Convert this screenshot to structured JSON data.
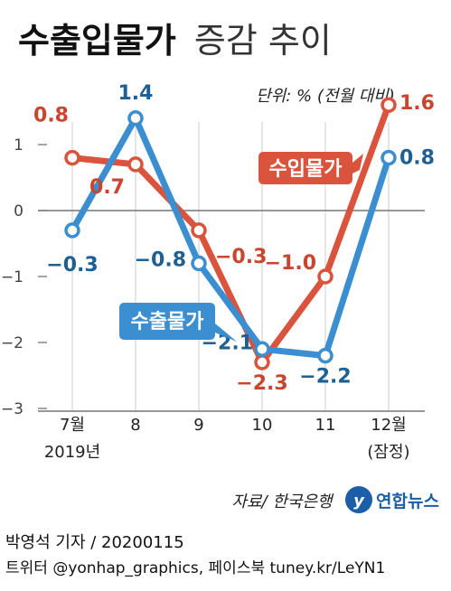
{
  "title_bold": "수출입물가",
  "title_rest": "증감 추이",
  "unit": "단위: % (전월 대비)",
  "source": "자료/ 한국은행",
  "logo_text": "연합뉴스",
  "credit_line1": "박영석 기자 /  20200115",
  "credit_line2": "트위터 @yonhap_graphics, 페이스북 tuney.kr/LeYN1",
  "colors": {
    "import": "#d9533d",
    "export": "#3b8ed0",
    "import_label": "#c8452f",
    "export_label": "#1f5f92",
    "axis": "#777777",
    "grid": "#d9d9d9"
  },
  "chart_data": {
    "type": "line",
    "categories": [
      "7월",
      "8",
      "9",
      "10",
      "11",
      "12월"
    ],
    "category_sublabels": [
      "2019년",
      "",
      "",
      "",
      "",
      "(잠정)"
    ],
    "ylim": [
      -3,
      1.6
    ],
    "yticks": [
      "1",
      "0",
      "−1",
      "−2",
      "−3"
    ],
    "ytick_values": [
      1,
      0,
      -1,
      -2,
      -3
    ],
    "series": [
      {
        "name": "수입물가",
        "key": "import",
        "values": [
          0.8,
          0.7,
          -0.3,
          -2.3,
          -1.0,
          1.6
        ],
        "labels": [
          "0.8",
          "0.7",
          "−0.3",
          "−2.3",
          "−1.0",
          "1.6"
        ]
      },
      {
        "name": "수출물가",
        "key": "export",
        "values": [
          -0.3,
          1.4,
          -0.8,
          -2.1,
          -2.2,
          0.8
        ],
        "labels": [
          "−0.3",
          "1.4",
          "−0.8",
          "−2.1",
          "−2.2",
          "0.8"
        ]
      }
    ]
  }
}
